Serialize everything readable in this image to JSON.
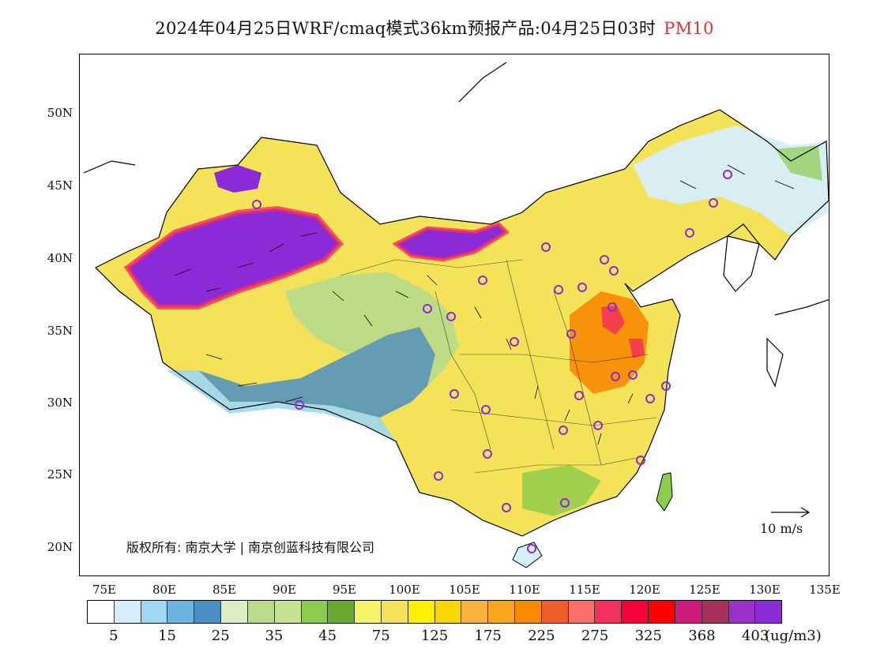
{
  "title": {
    "text": "2024年04月25日WRF/cmaq模式36km预报产品:04月25日03时",
    "product": "PM10"
  },
  "axes": {
    "lat_labels": [
      "50N",
      "45N",
      "40N",
      "35N",
      "30N",
      "25N",
      "20N"
    ],
    "lon_labels": [
      "75E",
      "80E",
      "85E",
      "90E",
      "95E",
      "100E",
      "105E",
      "110E",
      "115E",
      "120E",
      "125E",
      "130E",
      "135E"
    ]
  },
  "copyright": "版权所有: 南京大学 | 南京创蓝科技有限公司",
  "wind_scale": "10 m/s",
  "legend": {
    "unit": "(ug/m3)",
    "labels": [
      "5",
      "15",
      "25",
      "35",
      "45",
      "75",
      "125",
      "175",
      "225",
      "275",
      "325",
      "368",
      "403"
    ],
    "colors": [
      "#ffffff",
      "#d6eefb",
      "#9fd8f2",
      "#6cb4df",
      "#4a8fc4",
      "#dcecc4",
      "#b8dc8c",
      "#c6e394",
      "#8ccc4c",
      "#6aa834",
      "#f6f466",
      "#f4e258",
      "#fff000",
      "#f8d800",
      "#f7b23e",
      "#f8a61e",
      "#f88a00",
      "#ee5e28",
      "#fc6e6a",
      "#f4305c",
      "#f4003a",
      "#fc0000",
      "#ce1a7c",
      "#a8305c",
      "#9a32c8",
      "#8c2ad8"
    ]
  },
  "stations_icon": "circle-marker-icon"
}
